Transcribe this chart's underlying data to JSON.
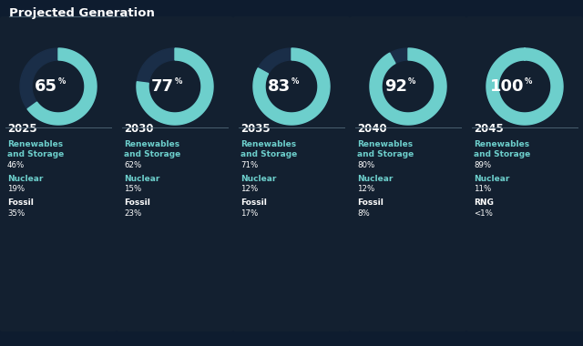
{
  "title": "Projected Generation",
  "background_color": "#0e1c2f",
  "card_color": "#132030",
  "teal_color": "#6dcfcc",
  "white_color": "#ffffff",
  "ring_bg_color": "#1a2e48",
  "sep_color": "#4a6070",
  "columns": [
    {
      "year": "2025",
      "pct": 65,
      "renewables_pct": "46%",
      "nuclear_pct": "19%",
      "fossil_label": "Fossil",
      "fossil_pct": "35%"
    },
    {
      "year": "2030",
      "pct": 77,
      "renewables_pct": "62%",
      "nuclear_pct": "15%",
      "fossil_label": "Fossil",
      "fossil_pct": "23%"
    },
    {
      "year": "2035",
      "pct": 83,
      "renewables_pct": "71%",
      "nuclear_pct": "12%",
      "fossil_label": "Fossil",
      "fossil_pct": "17%"
    },
    {
      "year": "2040",
      "pct": 92,
      "renewables_pct": "80%",
      "nuclear_pct": "12%",
      "fossil_label": "Fossil",
      "fossil_pct": "8%"
    },
    {
      "year": "2045",
      "pct": 100,
      "renewables_pct": "89%",
      "nuclear_pct": "11%",
      "fossil_label": "RNG",
      "fossil_pct": "<1%"
    }
  ]
}
